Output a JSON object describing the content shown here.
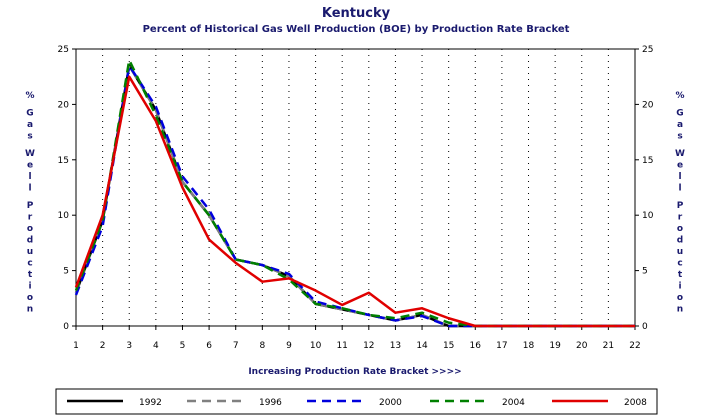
{
  "chart_data": {
    "type": "line",
    "title": "Kentucky",
    "subtitle": "Percent of Historical Gas Well Production (BOE) by Production Rate Bracket",
    "xlabel": "Increasing Production Rate Bracket >>>>",
    "ylabel": "% Gas Well Production",
    "x": [
      1,
      2,
      3,
      4,
      5,
      6,
      7,
      8,
      9,
      10,
      11,
      12,
      13,
      14,
      15,
      16,
      17,
      18,
      19,
      20,
      21,
      22
    ],
    "xlim": [
      1,
      22
    ],
    "ylim": [
      0,
      25
    ],
    "yticks": [
      0,
      5,
      10,
      15,
      20,
      25
    ],
    "grid": true,
    "legend_position": "bottom",
    "series": [
      {
        "name": "1992",
        "color": "#000000",
        "dash": "solid",
        "values": [
          3.0,
          9.5,
          23.5,
          19.5,
          13.0,
          10.0,
          6.0,
          5.5,
          4.5,
          2.0,
          1.5,
          1.0,
          0.5,
          1.0,
          0.0,
          0.0,
          0.0,
          0.0,
          0.0,
          0.0,
          0.0,
          0.0
        ]
      },
      {
        "name": "1996",
        "color": "#808080",
        "dash": "dashed",
        "values": [
          3.0,
          9.5,
          23.5,
          19.5,
          13.0,
          10.0,
          6.0,
          5.5,
          4.5,
          2.0,
          1.5,
          1.0,
          0.5,
          1.0,
          0.0,
          0.0,
          0.0,
          0.0,
          0.0,
          0.0,
          0.0,
          0.0
        ]
      },
      {
        "name": "2000",
        "color": "#0000dd",
        "dash": "dashed",
        "values": [
          2.8,
          9.0,
          23.5,
          19.8,
          13.5,
          10.5,
          6.0,
          5.5,
          4.7,
          2.2,
          1.6,
          1.0,
          0.5,
          0.9,
          0.0,
          0.0,
          0.0,
          0.0,
          0.0,
          0.0,
          0.0,
          0.0
        ]
      },
      {
        "name": "2004",
        "color": "#008000",
        "dash": "dashed",
        "values": [
          3.2,
          9.5,
          24.0,
          19.0,
          13.0,
          10.0,
          6.0,
          5.5,
          4.2,
          2.0,
          1.6,
          1.0,
          0.7,
          1.2,
          0.3,
          0.0,
          0.0,
          0.0,
          0.0,
          0.0,
          0.0,
          0.0
        ]
      },
      {
        "name": "2008",
        "color": "#e00000",
        "dash": "solid",
        "values": [
          3.5,
          10.0,
          22.5,
          18.5,
          12.5,
          7.8,
          5.7,
          4.0,
          4.3,
          3.2,
          1.9,
          3.0,
          1.2,
          1.6,
          0.7,
          0.0,
          0.0,
          0.0,
          0.0,
          0.0,
          0.0,
          0.0
        ]
      }
    ]
  }
}
